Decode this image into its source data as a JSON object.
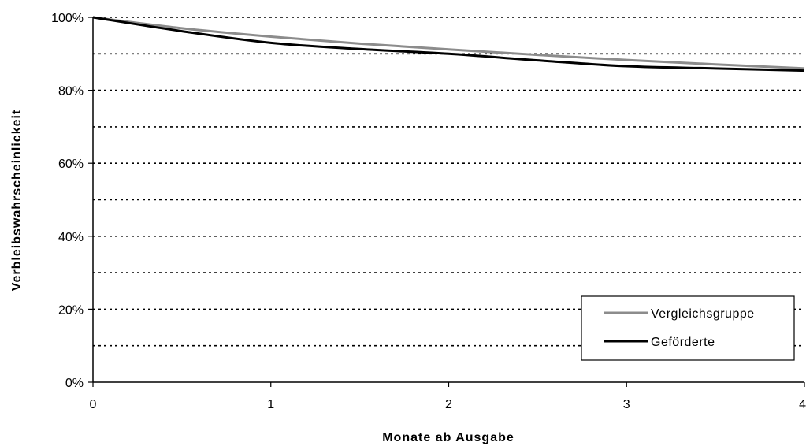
{
  "chart_data": {
    "type": "line",
    "xlabel": "Monate ab Ausgabe",
    "ylabel": "Verbleibswahrscheinlickeit",
    "x": [
      0,
      0.5,
      1,
      1.5,
      2,
      2.5,
      3,
      3.5,
      4
    ],
    "xticks": [
      "0",
      "1",
      "2",
      "3",
      "4"
    ],
    "yticks": [
      "0%",
      "20%",
      "40%",
      "60%",
      "80%",
      "100%"
    ],
    "xlim": [
      0,
      4
    ],
    "ylim": [
      0,
      1
    ],
    "gridlines": [
      0.1,
      0.2,
      0.3,
      0.4,
      0.5,
      0.6,
      0.7,
      0.8,
      0.9,
      1.0
    ],
    "grid_style": "dotted",
    "legend_position": "bottom-right",
    "series": [
      {
        "name": "Vergleichsgruppe",
        "color": "#8c8c8c",
        "values": [
          1.0,
          0.97,
          0.947,
          0.928,
          0.912,
          0.897,
          0.883,
          0.871,
          0.86
        ]
      },
      {
        "name": "Geförderte",
        "color": "#000000",
        "values": [
          1.0,
          0.962,
          0.93,
          0.913,
          0.9,
          0.882,
          0.866,
          0.86,
          0.854
        ]
      }
    ]
  }
}
